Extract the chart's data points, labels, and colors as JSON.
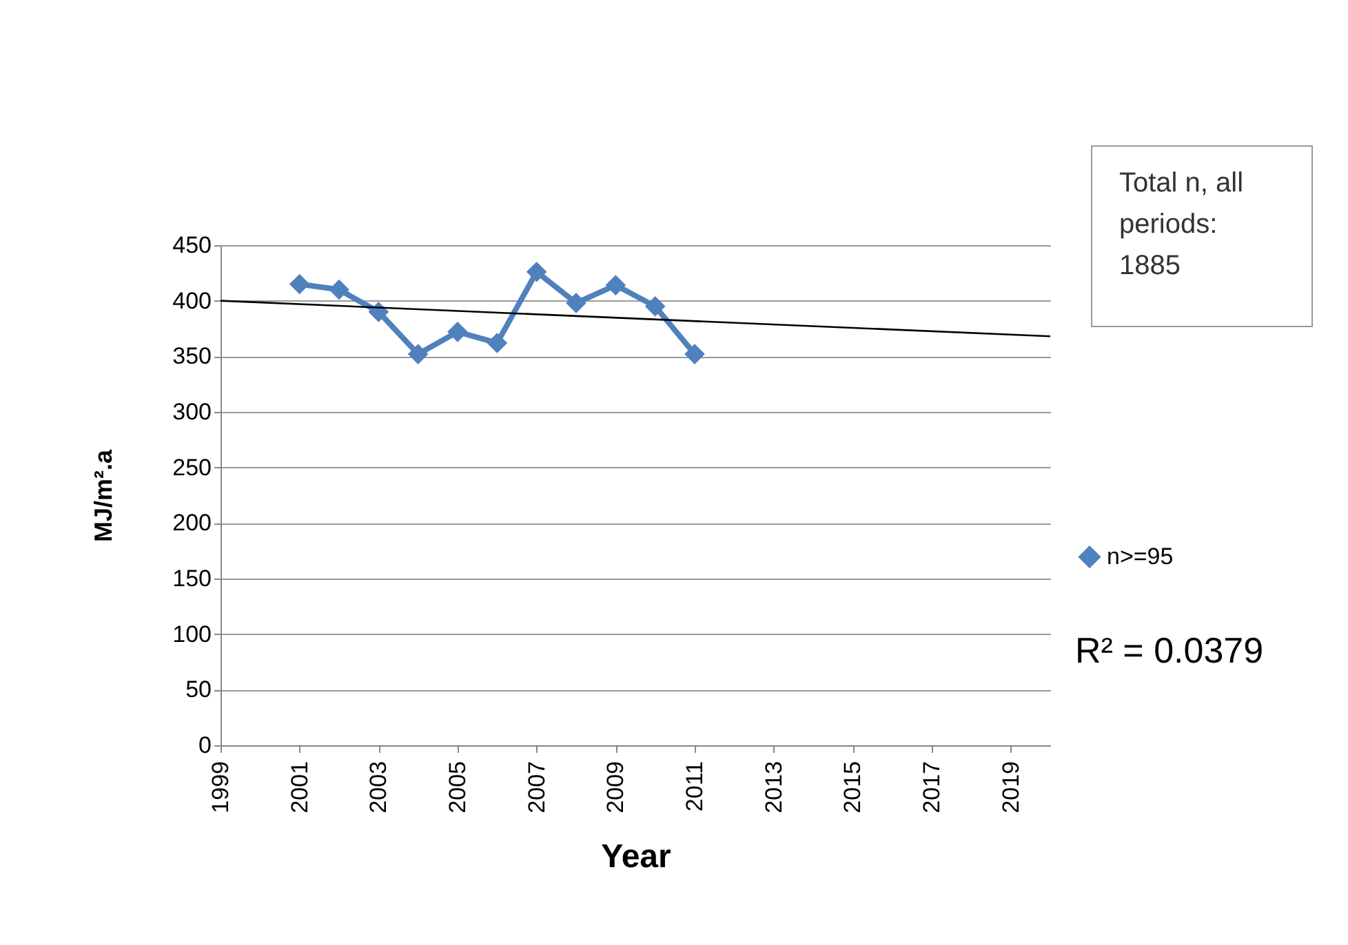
{
  "chart_data": {
    "type": "line",
    "xlabel": "Year",
    "ylabel": "MJ/m².a",
    "xlim": [
      1999,
      2020
    ],
    "xticks": [
      1999,
      2001,
      2003,
      2005,
      2007,
      2009,
      2011,
      2013,
      2015,
      2017,
      2019
    ],
    "ylim": [
      0,
      450
    ],
    "yticks": [
      0,
      50,
      100,
      150,
      200,
      250,
      300,
      350,
      400,
      450
    ],
    "grid": "y",
    "legend": "right",
    "marker": "diamond",
    "line_style": "solid",
    "series": [
      {
        "name": "n>=95",
        "color": "#4f81bd",
        "x": [
          2001,
          2002,
          2003,
          2004,
          2005,
          2006,
          2007,
          2008,
          2009,
          2010,
          2011
        ],
        "values": [
          415,
          410,
          390,
          352,
          372,
          362,
          426,
          398,
          414,
          395,
          352
        ]
      },
      {
        "type": "line",
        "color": "#000000",
        "marker": "none",
        "x": [
          1999,
          2020
        ],
        "values": [
          400,
          368
        ]
      }
    ],
    "annotations": [
      "Total n, all\nperiods:\n1885",
      "R² = 0.0379"
    ]
  }
}
